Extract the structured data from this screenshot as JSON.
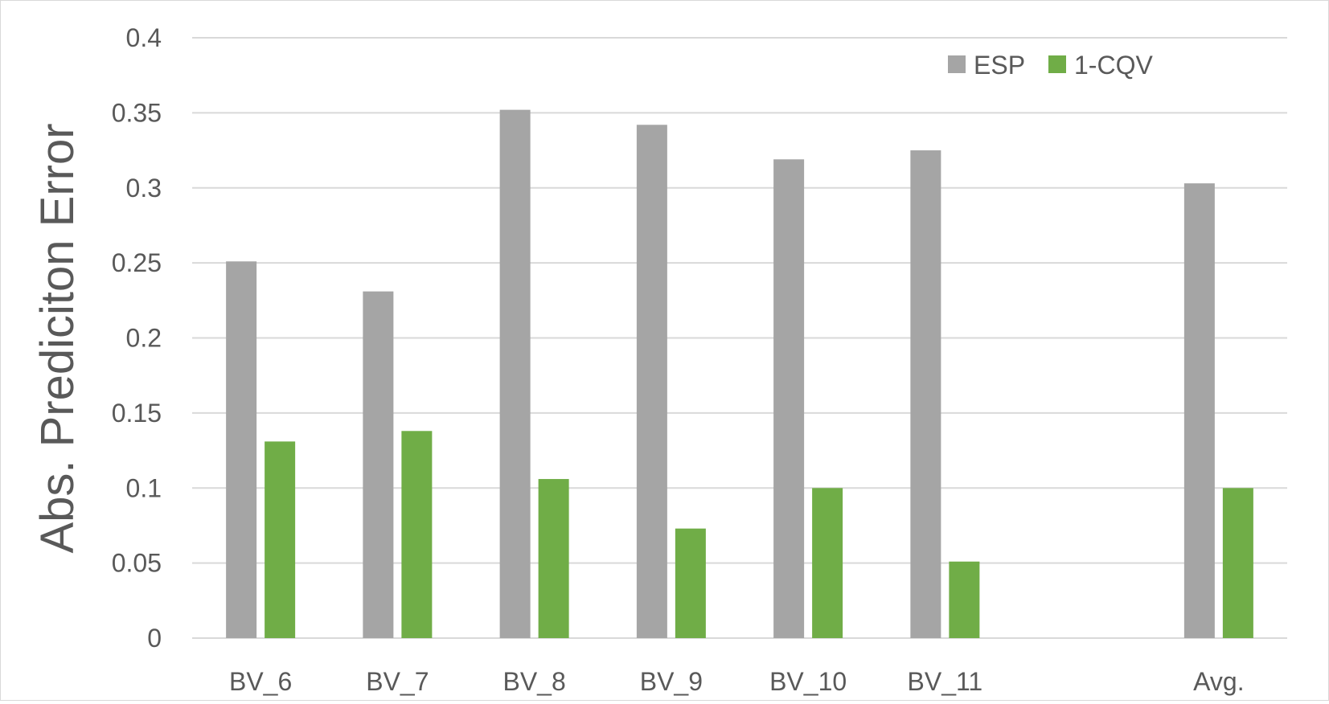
{
  "chart_data": {
    "type": "bar",
    "title": "",
    "xlabel": "",
    "ylabel": "Abs. Prediciton Error",
    "ylim": [
      0,
      0.4
    ],
    "yticks": [
      "0",
      "0.05",
      "0.1",
      "0.15",
      "0.2",
      "0.25",
      "0.3",
      "0.35",
      "0.4"
    ],
    "grid": true,
    "legend_position": "top-right",
    "categories": [
      "BV_6",
      "BV_7",
      "BV_8",
      "BV_9",
      "BV_10",
      "BV_11",
      "",
      "Avg."
    ],
    "series": [
      {
        "name": "ESP",
        "color": "#a5a5a5",
        "values": [
          0.251,
          0.231,
          0.352,
          0.342,
          0.319,
          0.325,
          null,
          0.303
        ]
      },
      {
        "name": "1-CQV",
        "color": "#70ad47",
        "values": [
          0.131,
          0.138,
          0.106,
          0.073,
          0.1,
          0.051,
          null,
          0.1
        ]
      }
    ]
  }
}
